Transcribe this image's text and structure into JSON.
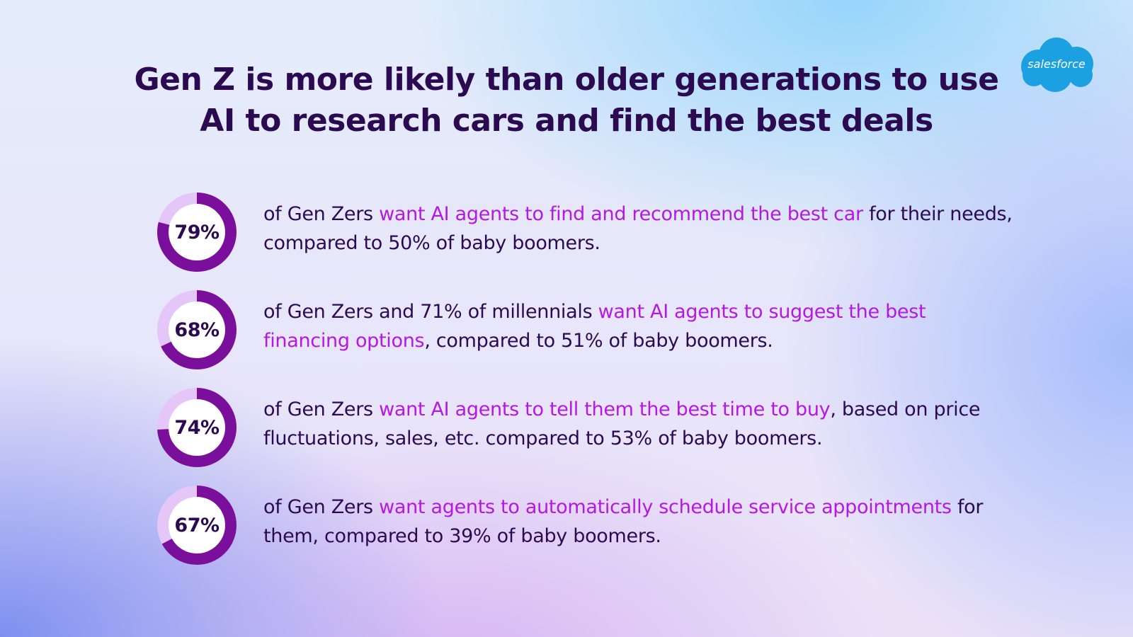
{
  "title": "Gen Z is more likely than older generations to use AI to research cars and find the best deals",
  "logo": {
    "text": "salesforce",
    "color": "#1ba1e2"
  },
  "colors": {
    "title": "#2c0a52",
    "highlight": "#b418e3",
    "ring_filled": "#7a0f9b",
    "ring_track": "#e4c6f8"
  },
  "chart_data": {
    "type": "donut",
    "series": [
      {
        "label": "79%",
        "value": 79,
        "text_parts": [
          "of Gen Zers ",
          "want AI agents to find and recommend the best car",
          " for their needs, compared to 50% of baby boomers."
        ]
      },
      {
        "label": "68%",
        "value": 68,
        "text_parts": [
          "of Gen Zers and 71% of millennials ",
          "want AI agents to suggest the best financing options",
          ", compared to 51% of baby boomers."
        ]
      },
      {
        "label": "74%",
        "value": 74,
        "text_parts": [
          "of Gen Zers ",
          "want AI agents to tell them the best time to buy",
          ", based on price fluctuations, sales, etc. compared to 53% of baby boomers."
        ]
      },
      {
        "label": "67%",
        "value": 67,
        "text_parts": [
          "of Gen Zers ",
          "want agents to automatically schedule service appointments",
          " for them, compared to 39% of baby boomers."
        ]
      }
    ]
  }
}
